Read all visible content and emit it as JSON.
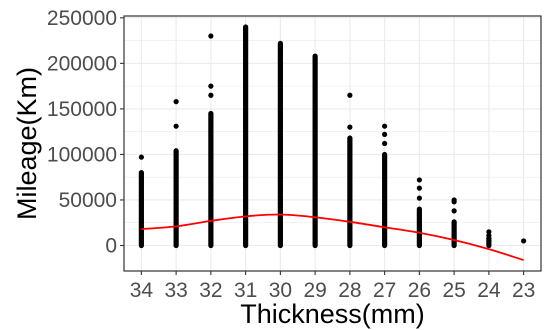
{
  "chart_data": {
    "type": "scatter",
    "title": "",
    "xlabel": "Thickness(mm)",
    "ylabel": "Mileage(Km)",
    "categories": [
      "34",
      "33",
      "32",
      "31",
      "30",
      "29",
      "28",
      "27",
      "26",
      "25",
      "24",
      "23"
    ],
    "ylim": [
      -28000,
      252000
    ],
    "yticks": [
      0,
      50000,
      100000,
      150000,
      200000,
      250000
    ],
    "grid": true,
    "legend": "none",
    "colors": {
      "points": "#000000",
      "trend": "#ff0000",
      "grid": "#ebebeb",
      "panel_border": "#333333"
    },
    "point_ranges": [
      {
        "x": "34",
        "min": 0,
        "dense_max": 80000,
        "outliers": [
          97000
        ]
      },
      {
        "x": "33",
        "min": 0,
        "dense_max": 104000,
        "outliers": [
          131000,
          158000
        ]
      },
      {
        "x": "32",
        "min": 0,
        "dense_max": 145000,
        "outliers": [
          165000,
          175000,
          230000
        ]
      },
      {
        "x": "31",
        "min": 0,
        "dense_max": 240000,
        "outliers": []
      },
      {
        "x": "30",
        "min": 0,
        "dense_max": 222000,
        "outliers": []
      },
      {
        "x": "29",
        "min": 0,
        "dense_max": 208000,
        "outliers": []
      },
      {
        "x": "28",
        "min": 0,
        "dense_max": 118000,
        "outliers": [
          130000,
          165000
        ]
      },
      {
        "x": "27",
        "min": 0,
        "dense_max": 100000,
        "outliers": [
          112000,
          122000,
          131000
        ]
      },
      {
        "x": "26",
        "min": 0,
        "dense_max": 40000,
        "outliers": [
          52000,
          63000,
          72000
        ]
      },
      {
        "x": "25",
        "min": 0,
        "dense_max": 26000,
        "outliers": [
          38000,
          48000,
          50000
        ]
      },
      {
        "x": "24",
        "min": 0,
        "dense_max": 8000,
        "outliers": [
          11000,
          15000
        ]
      },
      {
        "x": "23",
        "min": 5000,
        "dense_max": 5000,
        "outliers": []
      }
    ],
    "trend_line": {
      "x": [
        "34",
        "33",
        "32",
        "31",
        "30",
        "29",
        "28",
        "27",
        "26",
        "25",
        "24",
        "23"
      ],
      "y": [
        18000,
        21000,
        27000,
        32000,
        34000,
        31000,
        26000,
        20000,
        14000,
        6000,
        -4000,
        -16000
      ]
    }
  }
}
